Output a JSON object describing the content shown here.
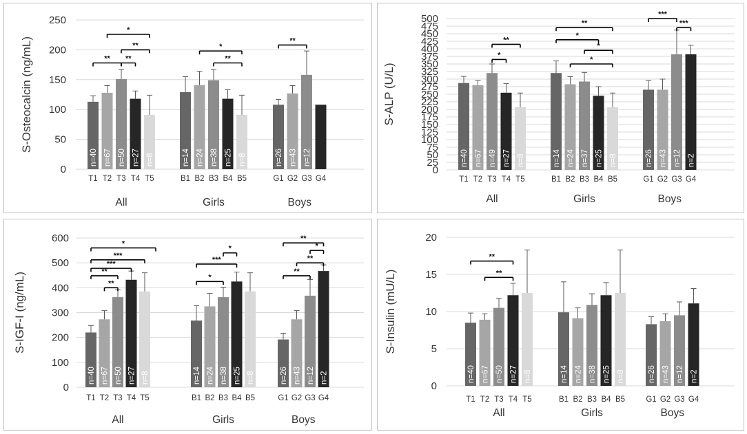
{
  "chart_data": [
    {
      "type": "bar",
      "ylabel": "S-Osteocalcin (ng/mL)",
      "ylim": [
        0,
        250
      ],
      "yticks": [
        0,
        50,
        100,
        150,
        200,
        250
      ],
      "groups": [
        {
          "label": "All",
          "bars": [
            {
              "cat": "T1",
              "value": 113,
              "err": 10,
              "n": "n=40",
              "color": "#666666",
              "ntext": "#ffffff"
            },
            {
              "cat": "T2",
              "value": 128,
              "err": 12,
              "n": "n=67",
              "color": "#a6a6a6",
              "ntext": "#ffffff"
            },
            {
              "cat": "T3",
              "value": 151,
              "err": 16,
              "n": "n=50",
              "color": "#8c8c8c",
              "ntext": "#ffffff"
            },
            {
              "cat": "T4",
              "value": 118,
              "err": 13,
              "n": "n=27",
              "color": "#262626",
              "ntext": "#ffffff"
            },
            {
              "cat": "T5",
              "value": 91,
              "err": 33,
              "n": "n=8",
              "color": "#d9d9d9",
              "ntext": "#ffffff"
            }
          ]
        },
        {
          "label": "Girls",
          "bars": [
            {
              "cat": "B1",
              "value": 129,
              "err": 26,
              "n": "n=14",
              "color": "#666666",
              "ntext": "#ffffff"
            },
            {
              "cat": "B2",
              "value": 141,
              "err": 23,
              "n": "n=24",
              "color": "#a6a6a6",
              "ntext": "#ffffff"
            },
            {
              "cat": "B3",
              "value": 149,
              "err": 18,
              "n": "n=38",
              "color": "#8c8c8c",
              "ntext": "#ffffff"
            },
            {
              "cat": "B4",
              "value": 118,
              "err": 15,
              "n": "n=25",
              "color": "#262626",
              "ntext": "#ffffff"
            },
            {
              "cat": "B5",
              "value": 91,
              "err": 33,
              "n": "n=8",
              "color": "#d9d9d9",
              "ntext": "#ffffff"
            }
          ]
        },
        {
          "label": "Boys",
          "bars": [
            {
              "cat": "G1",
              "value": 108,
              "err": 9,
              "n": "n=26",
              "color": "#666666",
              "ntext": "#ffffff"
            },
            {
              "cat": "G2",
              "value": 127,
              "err": 13,
              "n": "n=43",
              "color": "#a6a6a6",
              "ntext": "#ffffff"
            },
            {
              "cat": "G3",
              "value": 158,
              "err": 40,
              "n": "n=12",
              "color": "#8c8c8c",
              "ntext": "#ffffff"
            },
            {
              "cat": "G4",
              "value": 108,
              "err": 0,
              "n": "",
              "color": "#262626",
              "ntext": "#ffffff"
            }
          ]
        }
      ],
      "significance": [
        {
          "group": 0,
          "from": 0,
          "to": 2,
          "y": 178,
          "label": "**"
        },
        {
          "group": 0,
          "from": 1,
          "to": 4,
          "y": 226,
          "label": "*"
        },
        {
          "group": 0,
          "from": 2,
          "to": 3,
          "y": 178,
          "label": "**"
        },
        {
          "group": 0,
          "from": 2,
          "to": 4,
          "y": 200,
          "label": "**"
        },
        {
          "group": 1,
          "from": 1,
          "to": 4,
          "y": 198,
          "label": "*"
        },
        {
          "group": 1,
          "from": 2,
          "to": 4,
          "y": 178,
          "label": "**"
        },
        {
          "group": 2,
          "from": 0,
          "to": 2,
          "y": 208,
          "label": "**"
        }
      ]
    },
    {
      "type": "bar",
      "ylabel": "S-ALP (U/L)",
      "ylim": [
        0,
        500
      ],
      "yticks": [
        0,
        25,
        50,
        75,
        100,
        125,
        150,
        175,
        200,
        225,
        250,
        275,
        300,
        325,
        350,
        375,
        400,
        425,
        450,
        475,
        500
      ],
      "groups": [
        {
          "label": "All",
          "bars": [
            {
              "cat": "T1",
              "value": 287,
              "err": 22,
              "n": "n=40",
              "color": "#666666",
              "ntext": "#ffffff"
            },
            {
              "cat": "T2",
              "value": 280,
              "err": 15,
              "n": "n=67",
              "color": "#a6a6a6",
              "ntext": "#ffffff"
            },
            {
              "cat": "T3",
              "value": 320,
              "err": 30,
              "n": "n=49",
              "color": "#8c8c8c",
              "ntext": "#ffffff"
            },
            {
              "cat": "T4",
              "value": 255,
              "err": 30,
              "n": "n=27",
              "color": "#262626",
              "ntext": "#ffffff"
            },
            {
              "cat": "T5",
              "value": 207,
              "err": 47,
              "n": "n=8",
              "color": "#d9d9d9",
              "ntext": "#ffffff"
            }
          ]
        },
        {
          "label": "Girls",
          "bars": [
            {
              "cat": "B1",
              "value": 320,
              "err": 40,
              "n": "n=14",
              "color": "#666666",
              "ntext": "#ffffff"
            },
            {
              "cat": "B2",
              "value": 283,
              "err": 25,
              "n": "n=24",
              "color": "#a6a6a6",
              "ntext": "#ffffff"
            },
            {
              "cat": "B3",
              "value": 292,
              "err": 30,
              "n": "n=37",
              "color": "#8c8c8c",
              "ntext": "#ffffff"
            },
            {
              "cat": "B4",
              "value": 245,
              "err": 30,
              "n": "n=25",
              "color": "#262626",
              "ntext": "#ffffff"
            },
            {
              "cat": "B5",
              "value": 207,
              "err": 47,
              "n": "n=8",
              "color": "#d9d9d9",
              "ntext": "#ffffff"
            }
          ]
        },
        {
          "label": "Boys",
          "bars": [
            {
              "cat": "G1",
              "value": 265,
              "err": 30,
              "n": "n=26",
              "color": "#666666",
              "ntext": "#ffffff"
            },
            {
              "cat": "G2",
              "value": 265,
              "err": 35,
              "n": "n=43",
              "color": "#a6a6a6",
              "ntext": "#ffffff"
            },
            {
              "cat": "G3",
              "value": 382,
              "err": 80,
              "n": "n=12",
              "color": "#8c8c8c",
              "ntext": "#ffffff"
            },
            {
              "cat": "G4",
              "value": 382,
              "err": 30,
              "n": "n=2",
              "color": "#262626",
              "ntext": "#ffffff"
            }
          ]
        }
      ],
      "significance": [
        {
          "group": 0,
          "from": 2,
          "to": 3,
          "y": 365,
          "label": "*"
        },
        {
          "group": 0,
          "from": 2,
          "to": 4,
          "y": 415,
          "label": "**"
        },
        {
          "group": 1,
          "from": 0,
          "to": 3,
          "y": 430,
          "label": "*"
        },
        {
          "group": 1,
          "from": 0,
          "to": 4,
          "y": 470,
          "label": "**"
        },
        {
          "group": 1,
          "from": 1,
          "to": 4,
          "y": 350,
          "label": "*"
        },
        {
          "group": 1,
          "from": 2,
          "to": 4,
          "y": 395,
          "label": "*"
        },
        {
          "group": 2,
          "from": 0,
          "to": 2,
          "y": 500,
          "label": "***"
        },
        {
          "group": 2,
          "from": 2,
          "to": 3,
          "y": 470,
          "label": "***"
        }
      ]
    },
    {
      "type": "bar",
      "ylabel": "S-IGF-I (ng/mL)",
      "ylim": [
        0,
        600
      ],
      "yticks": [
        0,
        100,
        200,
        300,
        400,
        500,
        600
      ],
      "groups": [
        {
          "label": "All",
          "bars": [
            {
              "cat": "T1",
              "value": 220,
              "err": 28,
              "n": "n=40",
              "color": "#666666",
              "ntext": "#ffffff"
            },
            {
              "cat": "T2",
              "value": 273,
              "err": 35,
              "n": "n=67",
              "color": "#a6a6a6",
              "ntext": "#ffffff"
            },
            {
              "cat": "T3",
              "value": 362,
              "err": 30,
              "n": "n=50",
              "color": "#8c8c8c",
              "ntext": "#ffffff"
            },
            {
              "cat": "T4",
              "value": 432,
              "err": 35,
              "n": "n=27",
              "color": "#262626",
              "ntext": "#ffffff"
            },
            {
              "cat": "T5",
              "value": 385,
              "err": 75,
              "n": "n=8",
              "color": "#d9d9d9",
              "ntext": "#ffffff"
            }
          ]
        },
        {
          "label": "Girls",
          "bars": [
            {
              "cat": "B1",
              "value": 268,
              "err": 60,
              "n": "n=14",
              "color": "#666666",
              "ntext": "#ffffff"
            },
            {
              "cat": "B2",
              "value": 325,
              "err": 52,
              "n": "n=24",
              "color": "#a6a6a6",
              "ntext": "#ffffff"
            },
            {
              "cat": "B3",
              "value": 362,
              "err": 40,
              "n": "n=38",
              "color": "#8c8c8c",
              "ntext": "#ffffff"
            },
            {
              "cat": "B4",
              "value": 425,
              "err": 38,
              "n": "n=25",
              "color": "#262626",
              "ntext": "#ffffff"
            },
            {
              "cat": "B5",
              "value": 385,
              "err": 75,
              "n": "n=8",
              "color": "#d9d9d9",
              "ntext": "#ffffff"
            }
          ]
        },
        {
          "label": "Boys",
          "bars": [
            {
              "cat": "G1",
              "value": 192,
              "err": 25,
              "n": "n=26",
              "color": "#666666",
              "ntext": "#ffffff"
            },
            {
              "cat": "G2",
              "value": 273,
              "err": 35,
              "n": "n=43",
              "color": "#a6a6a6",
              "ntext": "#ffffff"
            },
            {
              "cat": "G3",
              "value": 368,
              "err": 65,
              "n": "n=12",
              "color": "#8c8c8c",
              "ntext": "#ffffff"
            },
            {
              "cat": "G4",
              "value": 467,
              "err": 25,
              "n": "n=2",
              "color": "#262626",
              "ntext": "#ffffff"
            }
          ]
        }
      ],
      "significance": [
        {
          "group": 0,
          "from": 0,
          "to": 2,
          "y": 448,
          "label": "**"
        },
        {
          "group": 0,
          "from": 0,
          "to": 3,
          "y": 478,
          "label": "***"
        },
        {
          "group": 0,
          "from": 0,
          "to": 4,
          "y": 512,
          "label": "***"
        },
        {
          "group": 0,
          "from": 0,
          "to": 5,
          "y": 560,
          "label": "*"
        },
        {
          "group": 0,
          "from": 1,
          "to": 2,
          "y": 400,
          "label": "**"
        },
        {
          "group": 1,
          "from": 0,
          "to": 2,
          "y": 425,
          "label": "*"
        },
        {
          "group": 1,
          "from": 0,
          "to": 3,
          "y": 495,
          "label": "***"
        },
        {
          "group": 1,
          "from": 2,
          "to": 3,
          "y": 540,
          "label": "*"
        },
        {
          "group": 2,
          "from": 0,
          "to": 2,
          "y": 448,
          "label": "**"
        },
        {
          "group": 2,
          "from": 1,
          "to": 3,
          "y": 500,
          "label": "**"
        },
        {
          "group": 2,
          "from": 2,
          "to": 3,
          "y": 550,
          "label": "*"
        },
        {
          "group": 2,
          "from": 0,
          "to": 3,
          "y": 580,
          "label": "**"
        }
      ]
    },
    {
      "type": "bar",
      "ylabel": "S-Insulin  (mU/L)",
      "ylim": [
        0,
        20
      ],
      "yticks": [
        0,
        5,
        10,
        15,
        20
      ],
      "groups": [
        {
          "label": "All",
          "bars": [
            {
              "cat": "T1",
              "value": 8.5,
              "err": 1.3,
              "n": "n=40",
              "color": "#666666",
              "ntext": "#ffffff"
            },
            {
              "cat": "T2",
              "value": 8.9,
              "err": 0.8,
              "n": "n=67",
              "color": "#a6a6a6",
              "ntext": "#ffffff"
            },
            {
              "cat": "T3",
              "value": 10.5,
              "err": 1.3,
              "n": "n=50",
              "color": "#8c8c8c",
              "ntext": "#ffffff"
            },
            {
              "cat": "T4",
              "value": 12.2,
              "err": 1.6,
              "n": "n=27",
              "color": "#262626",
              "ntext": "#ffffff"
            },
            {
              "cat": "T5",
              "value": 12.5,
              "err": 5.8,
              "n": "n=8",
              "color": "#d9d9d9",
              "ntext": "#ffffff"
            }
          ]
        },
        {
          "label": "Girls",
          "bars": [
            {
              "cat": "B1",
              "value": 9.9,
              "err": 4.1,
              "n": "n=14",
              "color": "#666666",
              "ntext": "#ffffff"
            },
            {
              "cat": "B2",
              "value": 9.1,
              "err": 1.4,
              "n": "n=24",
              "color": "#a6a6a6",
              "ntext": "#ffffff"
            },
            {
              "cat": "B3",
              "value": 10.9,
              "err": 1.5,
              "n": "n=38",
              "color": "#8c8c8c",
              "ntext": "#ffffff"
            },
            {
              "cat": "B4",
              "value": 12.2,
              "err": 1.7,
              "n": "n=25",
              "color": "#262626",
              "ntext": "#ffffff"
            },
            {
              "cat": "B5",
              "value": 12.5,
              "err": 5.8,
              "n": "n=8",
              "color": "#d9d9d9",
              "ntext": "#ffffff"
            }
          ]
        },
        {
          "label": "Boys",
          "bars": [
            {
              "cat": "G1",
              "value": 8.3,
              "err": 1.0,
              "n": "n=26",
              "color": "#666666",
              "ntext": "#ffffff"
            },
            {
              "cat": "G2",
              "value": 8.7,
              "err": 1.0,
              "n": "n=43",
              "color": "#a6a6a6",
              "ntext": "#ffffff"
            },
            {
              "cat": "G3",
              "value": 9.5,
              "err": 1.8,
              "n": "n=12",
              "color": "#8c8c8c",
              "ntext": "#ffffff"
            },
            {
              "cat": "G4",
              "value": 11.1,
              "err": 2.0,
              "n": "n=2",
              "color": "#262626",
              "ntext": "#ffffff"
            }
          ]
        }
      ],
      "significance": [
        {
          "group": 0,
          "from": 0,
          "to": 3,
          "y": 16.8,
          "label": "**"
        },
        {
          "group": 0,
          "from": 1,
          "to": 3,
          "y": 14.6,
          "label": "**"
        }
      ]
    }
  ]
}
